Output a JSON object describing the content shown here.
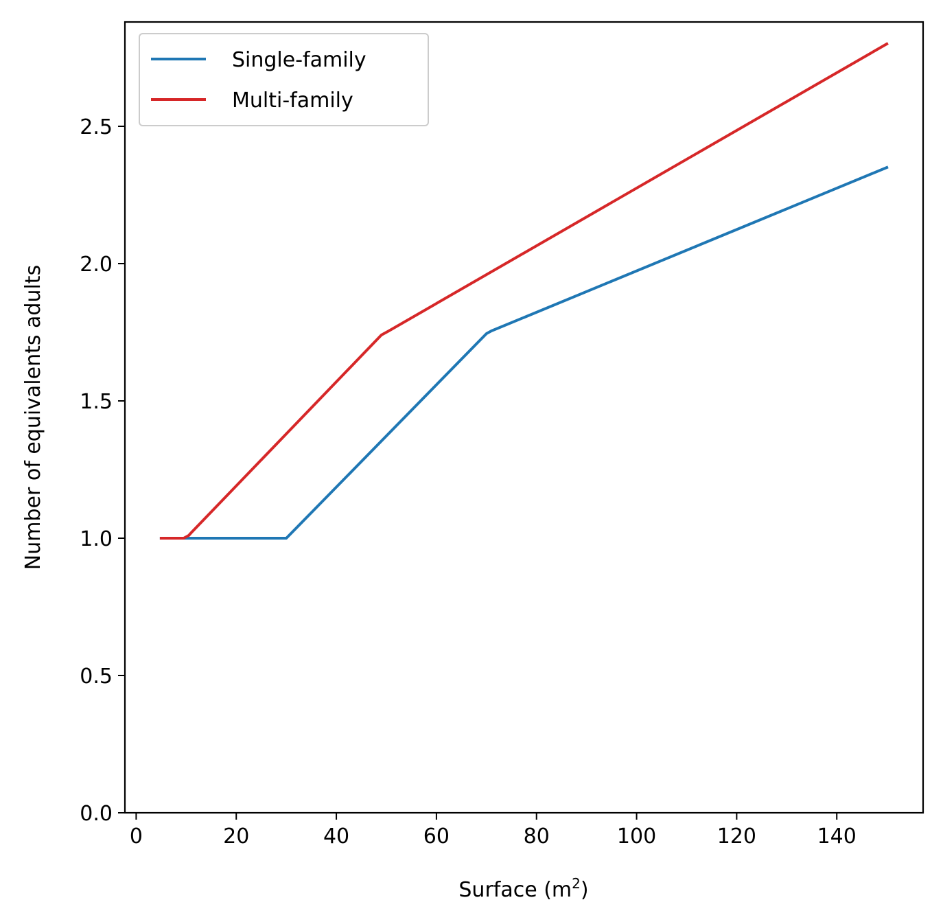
{
  "chart_data": {
    "type": "line",
    "title": "",
    "xlabel": "Surface (m",
    "xlabel_sup": "2",
    "xlabel_end": ")",
    "ylabel": "Number of equivalents adults",
    "xlim": [
      -2.25,
      157.25
    ],
    "ylim": [
      0,
      2.88
    ],
    "xticks": [
      0,
      20,
      40,
      60,
      80,
      100,
      120,
      140
    ],
    "yticks": [
      0.0,
      0.5,
      1.0,
      1.5,
      2.0,
      2.5
    ],
    "xtick_labels": [
      "0",
      "20",
      "40",
      "60",
      "80",
      "100",
      "120",
      "140"
    ],
    "ytick_labels": [
      "0.0",
      "0.5",
      "1.0",
      "1.5",
      "2.0",
      "2.5"
    ],
    "grid": false,
    "legend_position": "upper-left",
    "series": [
      {
        "name": "Single-family",
        "color": "#1f77b4",
        "x": [
          5,
          10,
          30,
          70,
          71,
          150
        ],
        "y": [
          1.0,
          1.0,
          1.0,
          1.745,
          1.755,
          2.35
        ]
      },
      {
        "name": "Multi-family",
        "color": "#d62728",
        "x": [
          5,
          9.5,
          10.5,
          11,
          49,
          50.5,
          150
        ],
        "y": [
          1.0,
          1.0,
          1.01,
          1.02,
          1.74,
          1.755,
          2.8
        ]
      }
    ]
  }
}
